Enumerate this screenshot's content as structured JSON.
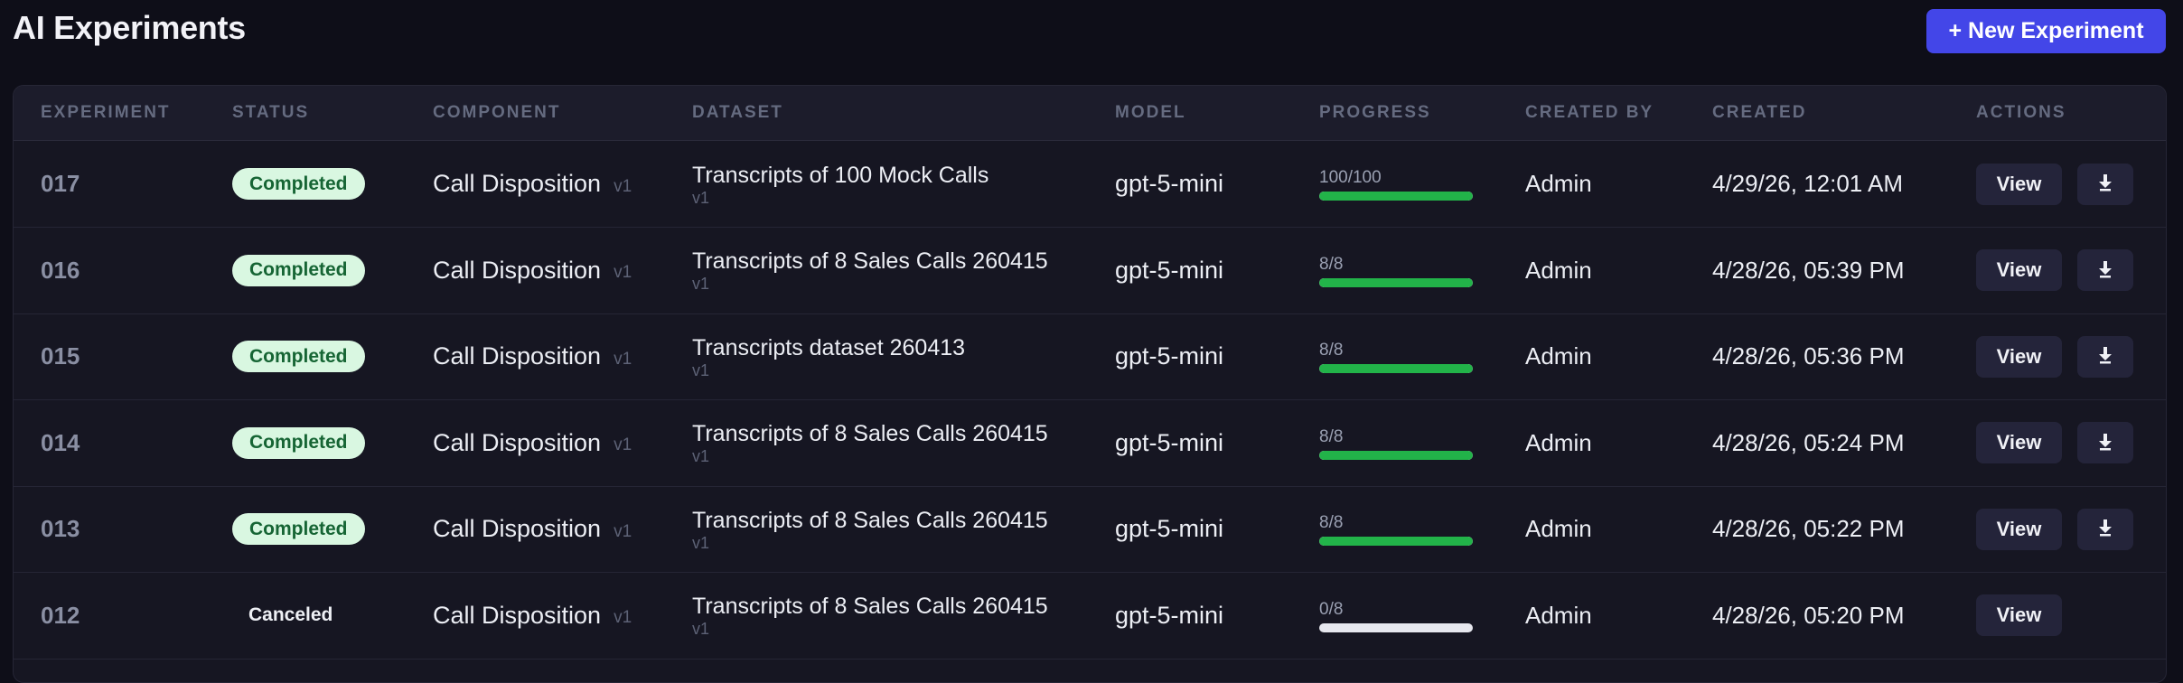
{
  "header": {
    "title": "AI Experiments",
    "new_button": "+ New Experiment"
  },
  "columns": [
    "EXPERIMENT",
    "STATUS",
    "COMPONENT",
    "DATASET",
    "MODEL",
    "PROGRESS",
    "CREATED BY",
    "CREATED",
    "ACTIONS"
  ],
  "actions": {
    "view_label": "View",
    "download_icon": "download-arrow-icon"
  },
  "colors": {
    "accent": "#4346e8",
    "progress": "#22b349",
    "badge_bg": "#d9f7e1",
    "badge_text": "#166534"
  },
  "rows": [
    {
      "id": "017",
      "status": "Completed",
      "component": "Call Disposition",
      "component_version": "v1",
      "dataset": "Transcripts of 100 Mock Calls",
      "dataset_version": "v1",
      "model": "gpt-5-mini",
      "progress_text": "100/100",
      "progress": 1.0,
      "created_by": "Admin",
      "created": "4/29/26, 12:01 AM",
      "downloadable": true
    },
    {
      "id": "016",
      "status": "Completed",
      "component": "Call Disposition",
      "component_version": "v1",
      "dataset": "Transcripts of 8 Sales Calls 260415",
      "dataset_version": "v1",
      "model": "gpt-5-mini",
      "progress_text": "8/8",
      "progress": 1.0,
      "created_by": "Admin",
      "created": "4/28/26, 05:39 PM",
      "downloadable": true
    },
    {
      "id": "015",
      "status": "Completed",
      "component": "Call Disposition",
      "component_version": "v1",
      "dataset": "Transcripts dataset 260413",
      "dataset_version": "v1",
      "model": "gpt-5-mini",
      "progress_text": "8/8",
      "progress": 1.0,
      "created_by": "Admin",
      "created": "4/28/26, 05:36 PM",
      "downloadable": true
    },
    {
      "id": "014",
      "status": "Completed",
      "component": "Call Disposition",
      "component_version": "v1",
      "dataset": "Transcripts of 8 Sales Calls 260415",
      "dataset_version": "v1",
      "model": "gpt-5-mini",
      "progress_text": "8/8",
      "progress": 1.0,
      "created_by": "Admin",
      "created": "4/28/26, 05:24 PM",
      "downloadable": true
    },
    {
      "id": "013",
      "status": "Completed",
      "component": "Call Disposition",
      "component_version": "v1",
      "dataset": "Transcripts of 8 Sales Calls 260415",
      "dataset_version": "v1",
      "model": "gpt-5-mini",
      "progress_text": "8/8",
      "progress": 1.0,
      "created_by": "Admin",
      "created": "4/28/26, 05:22 PM",
      "downloadable": true
    },
    {
      "id": "012",
      "status": "Canceled",
      "component": "Call Disposition",
      "component_version": "v1",
      "dataset": "Transcripts of 8 Sales Calls 260415",
      "dataset_version": "v1",
      "model": "gpt-5-mini",
      "progress_text": "0/8",
      "progress": 0.0,
      "created_by": "Admin",
      "created": "4/28/26, 05:20 PM",
      "downloadable": false
    }
  ]
}
